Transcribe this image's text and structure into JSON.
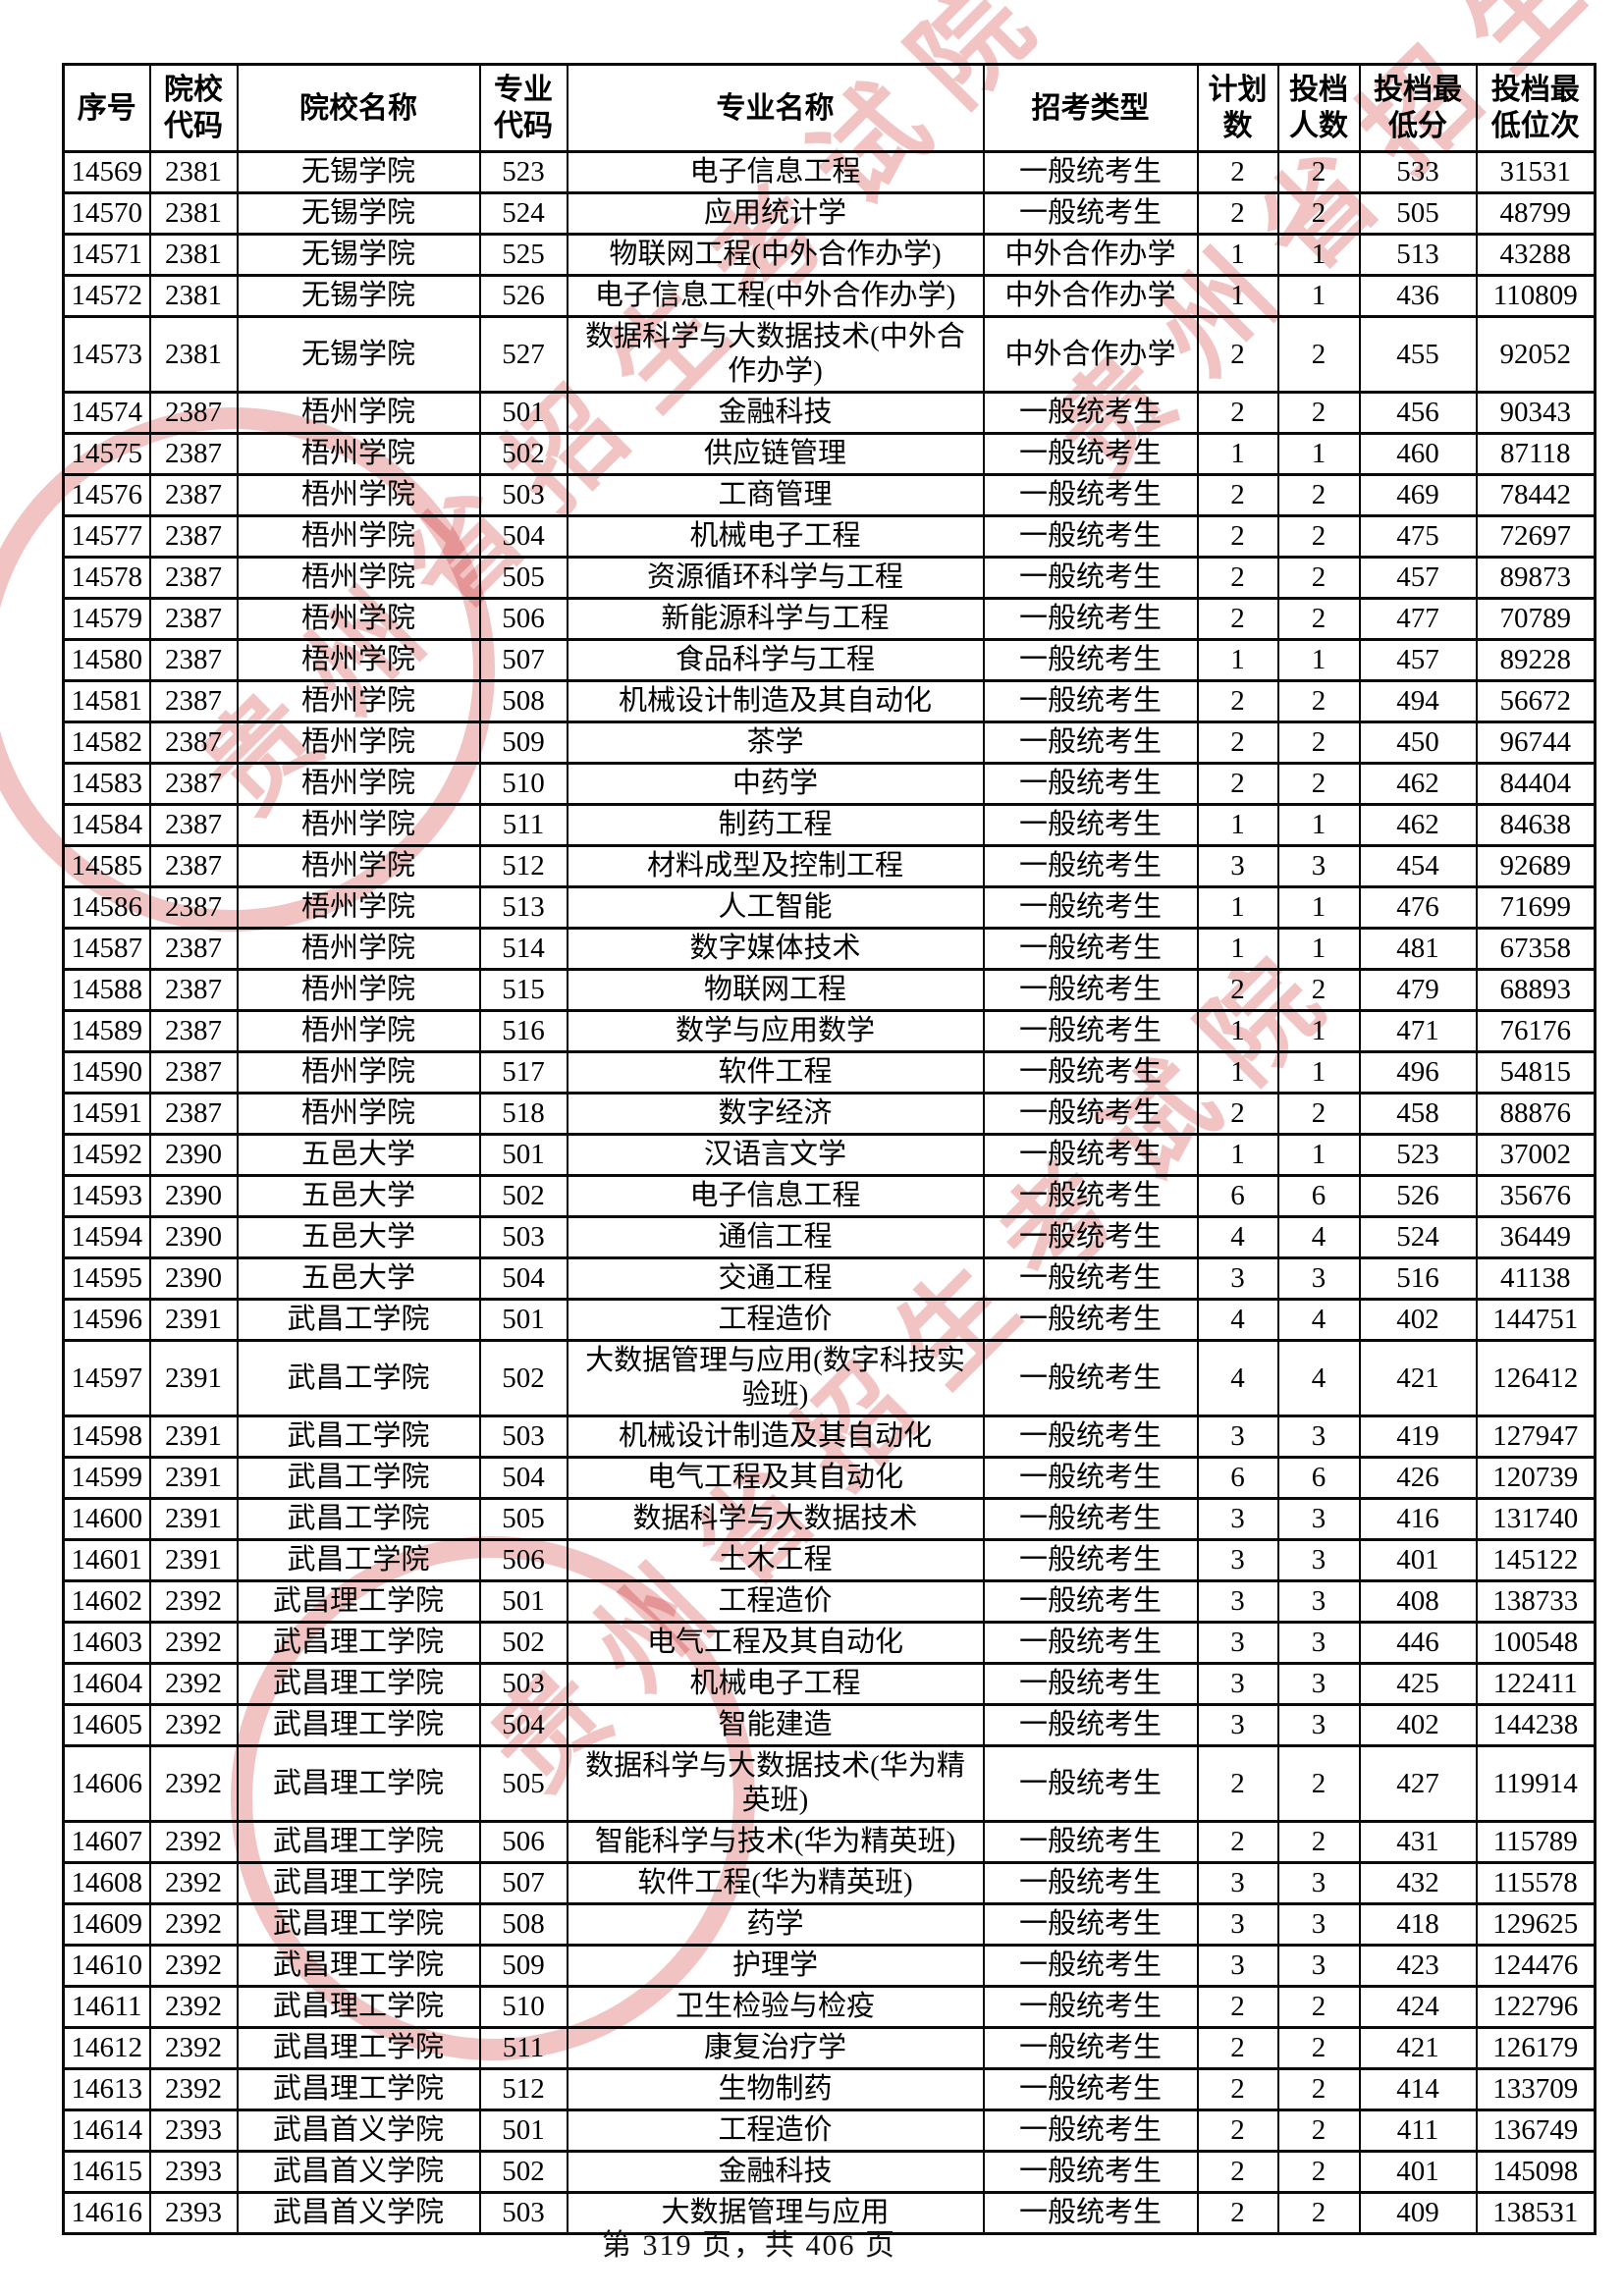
{
  "table": {
    "columns": [
      "序号",
      "院校代码",
      "院校名称",
      "专业代码",
      "专业名称",
      "招考类型",
      "计划数",
      "投档人数",
      "投档最低分",
      "投档最低位次"
    ],
    "rows": [
      [
        "14569",
        "2381",
        "无锡学院",
        "523",
        "电子信息工程",
        "一般统考生",
        "2",
        "2",
        "533",
        "31531"
      ],
      [
        "14570",
        "2381",
        "无锡学院",
        "524",
        "应用统计学",
        "一般统考生",
        "2",
        "2",
        "505",
        "48799"
      ],
      [
        "14571",
        "2381",
        "无锡学院",
        "525",
        "物联网工程(中外合作办学)",
        "中外合作办学",
        "1",
        "1",
        "513",
        "43288"
      ],
      [
        "14572",
        "2381",
        "无锡学院",
        "526",
        "电子信息工程(中外合作办学)",
        "中外合作办学",
        "1",
        "1",
        "436",
        "110809"
      ],
      [
        "14573",
        "2381",
        "无锡学院",
        "527",
        "数据科学与大数据技术(中外合作办学)",
        "中外合作办学",
        "2",
        "2",
        "455",
        "92052"
      ],
      [
        "14574",
        "2387",
        "梧州学院",
        "501",
        "金融科技",
        "一般统考生",
        "2",
        "2",
        "456",
        "90343"
      ],
      [
        "14575",
        "2387",
        "梧州学院",
        "502",
        "供应链管理",
        "一般统考生",
        "1",
        "1",
        "460",
        "87118"
      ],
      [
        "14576",
        "2387",
        "梧州学院",
        "503",
        "工商管理",
        "一般统考生",
        "2",
        "2",
        "469",
        "78442"
      ],
      [
        "14577",
        "2387",
        "梧州学院",
        "504",
        "机械电子工程",
        "一般统考生",
        "2",
        "2",
        "475",
        "72697"
      ],
      [
        "14578",
        "2387",
        "梧州学院",
        "505",
        "资源循环科学与工程",
        "一般统考生",
        "2",
        "2",
        "457",
        "89873"
      ],
      [
        "14579",
        "2387",
        "梧州学院",
        "506",
        "新能源科学与工程",
        "一般统考生",
        "2",
        "2",
        "477",
        "70789"
      ],
      [
        "14580",
        "2387",
        "梧州学院",
        "507",
        "食品科学与工程",
        "一般统考生",
        "1",
        "1",
        "457",
        "89228"
      ],
      [
        "14581",
        "2387",
        "梧州学院",
        "508",
        "机械设计制造及其自动化",
        "一般统考生",
        "2",
        "2",
        "494",
        "56672"
      ],
      [
        "14582",
        "2387",
        "梧州学院",
        "509",
        "茶学",
        "一般统考生",
        "2",
        "2",
        "450",
        "96744"
      ],
      [
        "14583",
        "2387",
        "梧州学院",
        "510",
        "中药学",
        "一般统考生",
        "2",
        "2",
        "462",
        "84404"
      ],
      [
        "14584",
        "2387",
        "梧州学院",
        "511",
        "制药工程",
        "一般统考生",
        "1",
        "1",
        "462",
        "84638"
      ],
      [
        "14585",
        "2387",
        "梧州学院",
        "512",
        "材料成型及控制工程",
        "一般统考生",
        "3",
        "3",
        "454",
        "92689"
      ],
      [
        "14586",
        "2387",
        "梧州学院",
        "513",
        "人工智能",
        "一般统考生",
        "1",
        "1",
        "476",
        "71699"
      ],
      [
        "14587",
        "2387",
        "梧州学院",
        "514",
        "数字媒体技术",
        "一般统考生",
        "1",
        "1",
        "481",
        "67358"
      ],
      [
        "14588",
        "2387",
        "梧州学院",
        "515",
        "物联网工程",
        "一般统考生",
        "2",
        "2",
        "479",
        "68893"
      ],
      [
        "14589",
        "2387",
        "梧州学院",
        "516",
        "数学与应用数学",
        "一般统考生",
        "1",
        "1",
        "471",
        "76176"
      ],
      [
        "14590",
        "2387",
        "梧州学院",
        "517",
        "软件工程",
        "一般统考生",
        "1",
        "1",
        "496",
        "54815"
      ],
      [
        "14591",
        "2387",
        "梧州学院",
        "518",
        "数字经济",
        "一般统考生",
        "2",
        "2",
        "458",
        "88876"
      ],
      [
        "14592",
        "2390",
        "五邑大学",
        "501",
        "汉语言文学",
        "一般统考生",
        "1",
        "1",
        "523",
        "37002"
      ],
      [
        "14593",
        "2390",
        "五邑大学",
        "502",
        "电子信息工程",
        "一般统考生",
        "6",
        "6",
        "526",
        "35676"
      ],
      [
        "14594",
        "2390",
        "五邑大学",
        "503",
        "通信工程",
        "一般统考生",
        "4",
        "4",
        "524",
        "36449"
      ],
      [
        "14595",
        "2390",
        "五邑大学",
        "504",
        "交通工程",
        "一般统考生",
        "3",
        "3",
        "516",
        "41138"
      ],
      [
        "14596",
        "2391",
        "武昌工学院",
        "501",
        "工程造价",
        "一般统考生",
        "4",
        "4",
        "402",
        "144751"
      ],
      [
        "14597",
        "2391",
        "武昌工学院",
        "502",
        "大数据管理与应用(数字科技实验班)",
        "一般统考生",
        "4",
        "4",
        "421",
        "126412"
      ],
      [
        "14598",
        "2391",
        "武昌工学院",
        "503",
        "机械设计制造及其自动化",
        "一般统考生",
        "3",
        "3",
        "419",
        "127947"
      ],
      [
        "14599",
        "2391",
        "武昌工学院",
        "504",
        "电气工程及其自动化",
        "一般统考生",
        "6",
        "6",
        "426",
        "120739"
      ],
      [
        "14600",
        "2391",
        "武昌工学院",
        "505",
        "数据科学与大数据技术",
        "一般统考生",
        "3",
        "3",
        "416",
        "131740"
      ],
      [
        "14601",
        "2391",
        "武昌工学院",
        "506",
        "土木工程",
        "一般统考生",
        "3",
        "3",
        "401",
        "145122"
      ],
      [
        "14602",
        "2392",
        "武昌理工学院",
        "501",
        "工程造价",
        "一般统考生",
        "3",
        "3",
        "408",
        "138733"
      ],
      [
        "14603",
        "2392",
        "武昌理工学院",
        "502",
        "电气工程及其自动化",
        "一般统考生",
        "3",
        "3",
        "446",
        "100548"
      ],
      [
        "14604",
        "2392",
        "武昌理工学院",
        "503",
        "机械电子工程",
        "一般统考生",
        "3",
        "3",
        "425",
        "122411"
      ],
      [
        "14605",
        "2392",
        "武昌理工学院",
        "504",
        "智能建造",
        "一般统考生",
        "3",
        "3",
        "402",
        "144238"
      ],
      [
        "14606",
        "2392",
        "武昌理工学院",
        "505",
        "数据科学与大数据技术(华为精英班)",
        "一般统考生",
        "2",
        "2",
        "427",
        "119914"
      ],
      [
        "14607",
        "2392",
        "武昌理工学院",
        "506",
        "智能科学与技术(华为精英班)",
        "一般统考生",
        "2",
        "2",
        "431",
        "115789"
      ],
      [
        "14608",
        "2392",
        "武昌理工学院",
        "507",
        "软件工程(华为精英班)",
        "一般统考生",
        "3",
        "3",
        "432",
        "115578"
      ],
      [
        "14609",
        "2392",
        "武昌理工学院",
        "508",
        "药学",
        "一般统考生",
        "3",
        "3",
        "418",
        "129625"
      ],
      [
        "14610",
        "2392",
        "武昌理工学院",
        "509",
        "护理学",
        "一般统考生",
        "3",
        "3",
        "423",
        "124476"
      ],
      [
        "14611",
        "2392",
        "武昌理工学院",
        "510",
        "卫生检验与检疫",
        "一般统考生",
        "2",
        "2",
        "424",
        "122796"
      ],
      [
        "14612",
        "2392",
        "武昌理工学院",
        "511",
        "康复治疗学",
        "一般统考生",
        "2",
        "2",
        "421",
        "126179"
      ],
      [
        "14613",
        "2392",
        "武昌理工学院",
        "512",
        "生物制药",
        "一般统考生",
        "2",
        "2",
        "414",
        "133709"
      ],
      [
        "14614",
        "2393",
        "武昌首义学院",
        "501",
        "工程造价",
        "一般统考生",
        "2",
        "2",
        "411",
        "136749"
      ],
      [
        "14615",
        "2393",
        "武昌首义学院",
        "502",
        "金融科技",
        "一般统考生",
        "2",
        "2",
        "401",
        "145098"
      ],
      [
        "14616",
        "2393",
        "武昌首义学院",
        "503",
        "大数据管理与应用",
        "一般统考生",
        "2",
        "2",
        "409",
        "138531"
      ]
    ]
  },
  "footer": {
    "page_info": "第 319 页，共 406 页"
  },
  "watermark": {
    "text": "贵州省招生考试院",
    "color": "#de6868"
  }
}
